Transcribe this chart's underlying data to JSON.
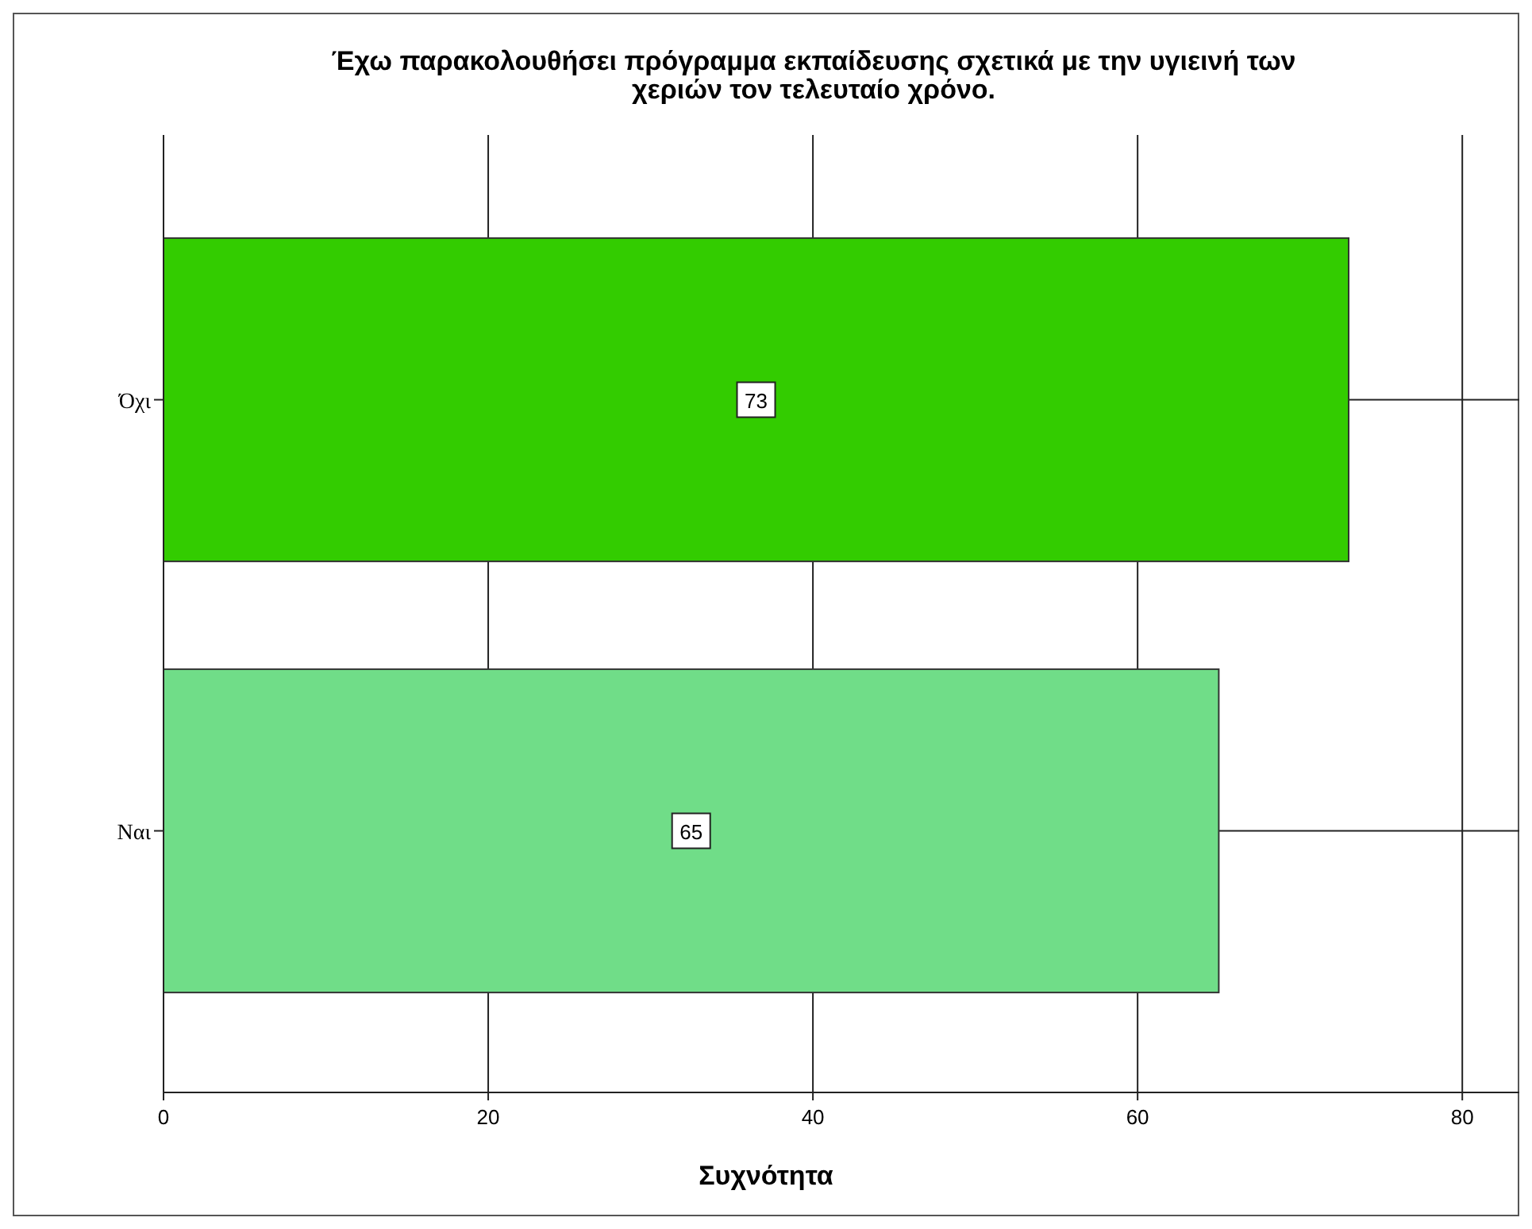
{
  "chart_data": {
    "type": "bar",
    "orientation": "horizontal",
    "title": "Έχω παρακολουθήσει πρόγραμμα εκπαίδευσης σχετικά με την υγιεινή των χεριών τον τελευταίο χρόνο.",
    "xlabel": "Συχνότητα",
    "categories": [
      "Όχι",
      "Ναι"
    ],
    "values": [
      73,
      65
    ],
    "colors": [
      "#33cc00",
      "#70dd88"
    ],
    "xlim": [
      0,
      84
    ],
    "xticks": [
      0,
      20,
      40,
      60,
      80
    ],
    "grid": true,
    "data_labels": true
  }
}
